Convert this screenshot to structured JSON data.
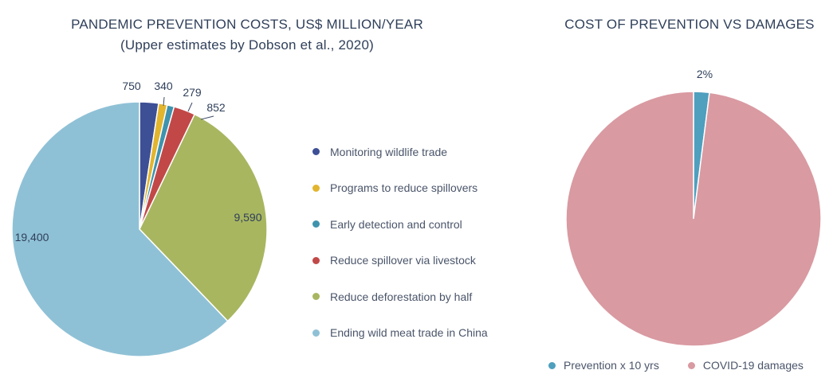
{
  "chart_data": [
    {
      "type": "pie",
      "title": "PANDEMIC PREVENTION COSTS, US$ MILLION/YEAR",
      "subtitle": "(Upper estimates by Dobson et al., 2020)",
      "slices": [
        {
          "name": "Monitoring wildlife trade",
          "value": 750,
          "label": "750",
          "color": "#3d4f95"
        },
        {
          "name": "Programs to reduce spillovers",
          "value": 340,
          "label": "340",
          "color": "#e2b52f"
        },
        {
          "name": "Early detection and control",
          "value": 279,
          "label": "279",
          "color": "#3f93ad"
        },
        {
          "name": "Reduce spillover via livestock",
          "value": 852,
          "label": "852",
          "color": "#c24848"
        },
        {
          "name": "Reduce deforestation by half",
          "value": 9590,
          "label": "9,590",
          "color": "#a8b660"
        },
        {
          "name": "Ending wild meat trade in China",
          "value": 19400,
          "label": "19,400",
          "color": "#8fc1d6"
        }
      ],
      "legend_position": "right"
    },
    {
      "type": "pie",
      "title": "COST OF PREVENTION VS DAMAGES",
      "slices": [
        {
          "name": "Prevention x 10 yrs",
          "value": 2,
          "label": "2%",
          "color": "#4f9fbe"
        },
        {
          "name": "COVID-19 damages",
          "value": 98,
          "label": "",
          "color": "#d99aa2"
        }
      ],
      "legend_position": "bottom"
    }
  ]
}
